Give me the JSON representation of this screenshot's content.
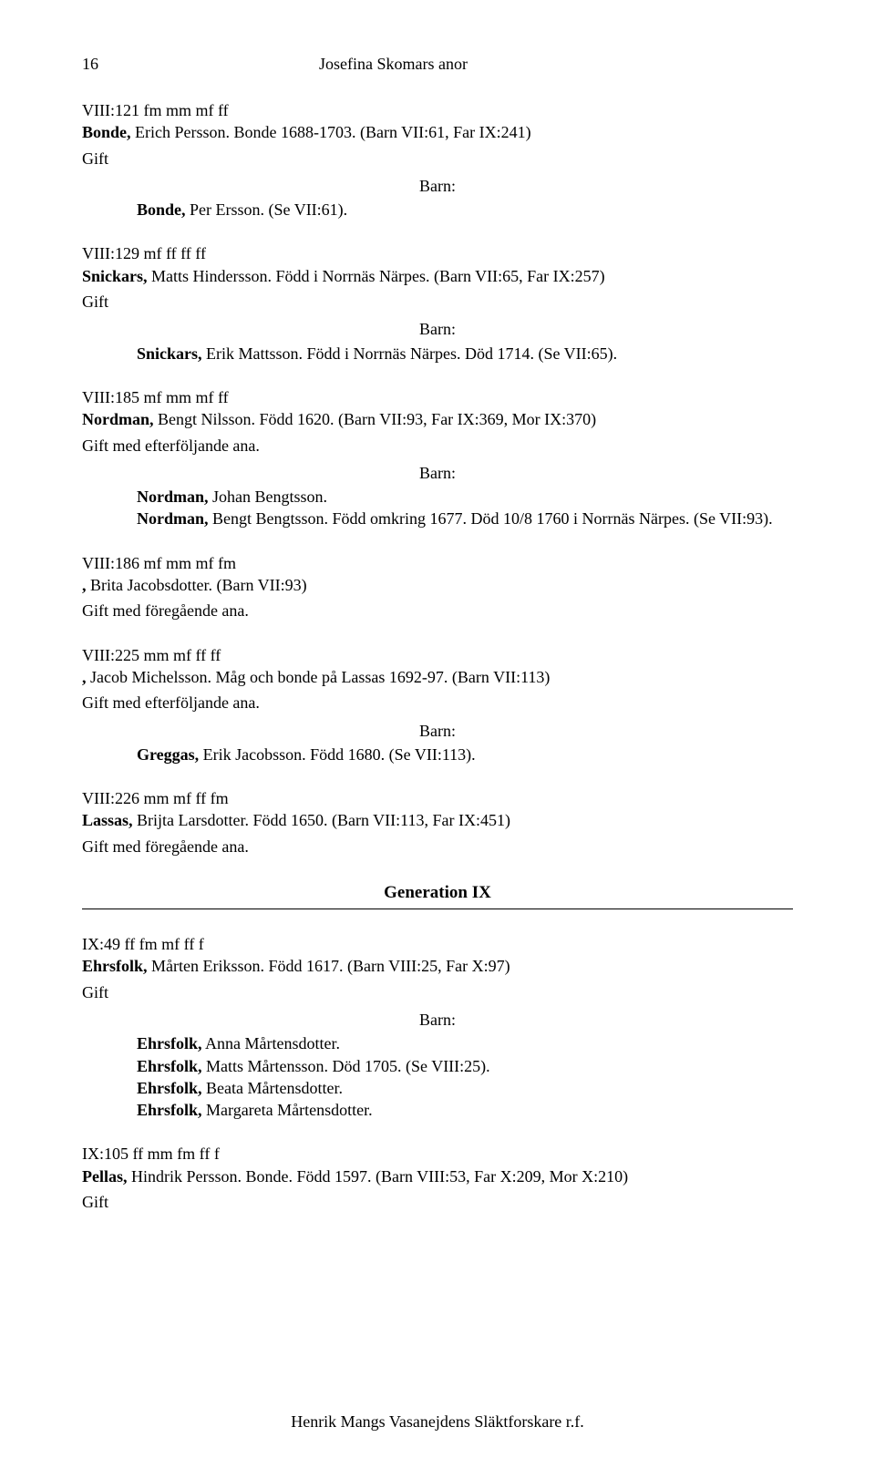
{
  "page": {
    "number": "16",
    "title": "Josefina Skomars anor"
  },
  "labels": {
    "gift": "Gift",
    "barn": "Barn:",
    "gift_efter": "Gift med efterföljande ana.",
    "gift_fore": "Gift med föregående ana."
  },
  "entries": {
    "e1": {
      "code": "VIII:121 fm mm mf ff",
      "surname": "Bonde,",
      "rest": " Erich Persson. Bonde 1688-1703. (Barn VII:61, Far IX:241)",
      "spouse_surname": "Bonde,",
      "spouse_rest": " Per Ersson. (Se VII:61)."
    },
    "e2": {
      "code": "VIII:129 mf ff ff ff",
      "surname": "Snickars,",
      "rest": " Matts Hindersson. Född i Norrnäs Närpes. (Barn VII:65, Far IX:257)",
      "spouse_surname": "Snickars,",
      "spouse_rest": " Erik Mattsson. Född i Norrnäs Närpes. Död 1714. (Se VII:65)."
    },
    "e3": {
      "code": "VIII:185 mf mm mf ff",
      "surname": "Nordman,",
      "rest": " Bengt Nilsson. Född 1620. (Barn VII:93, Far IX:369, Mor IX:370)",
      "child1_surname": "Nordman,",
      "child1_rest": " Johan Bengtsson.",
      "child2_surname": "Nordman,",
      "child2_rest": " Bengt Bengtsson. Född omkring 1677. Död 10/8 1760 i Norrnäs Närpes. (Se VII:93)."
    },
    "e4": {
      "code": "VIII:186 mf mm mf fm",
      "surname": ",",
      "rest": " Brita Jacobsdotter. (Barn VII:93)"
    },
    "e5": {
      "code": "VIII:225 mm mf ff ff",
      "surname": ",",
      "rest": " Jacob Michelsson. Måg och bonde på Lassas 1692-97. (Barn VII:113)",
      "child1_surname": "Greggas,",
      "child1_rest": " Erik Jacobsson. Född 1680. (Se VII:113)."
    },
    "e6": {
      "code": "VIII:226 mm mf ff fm",
      "surname": "Lassas,",
      "rest": " Brijta Larsdotter. Född 1650. (Barn VII:113, Far IX:451)"
    },
    "gen9": "Generation IX",
    "e7": {
      "code": "IX:49 ff fm mf ff f",
      "surname": "Ehrsfolk,",
      "rest": " Mårten Eriksson. Född 1617. (Barn VIII:25, Far X:97)",
      "c1_surname": "Ehrsfolk,",
      "c1_rest": " Anna Mårtensdotter.",
      "c2_surname": "Ehrsfolk,",
      "c2_rest": " Matts Mårtensson. Död 1705. (Se VIII:25).",
      "c3_surname": "Ehrsfolk,",
      "c3_rest": " Beata Mårtensdotter.",
      "c4_surname": "Ehrsfolk,",
      "c4_rest": " Margareta Mårtensdotter."
    },
    "e8": {
      "code": "IX:105 ff mm fm ff f",
      "surname": "Pellas,",
      "rest": " Hindrik Persson. Bonde. Född 1597. (Barn VIII:53, Far X:209, Mor X:210)"
    }
  },
  "footer": "Henrik Mangs Vasanejdens Släktforskare r.f."
}
